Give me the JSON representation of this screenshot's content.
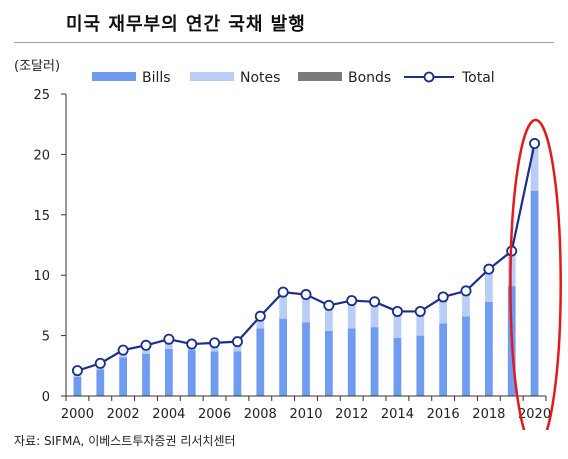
{
  "title": "미국 재무부의 연간 국채 발행",
  "source": "자료: SIFMA, 이베스트투자증권 리서치센터",
  "colors": {
    "bills": "#6f9cf0",
    "notes": "#b9cdf5",
    "bonds": "#7a7a7a",
    "total_line": "#1a2f86",
    "total_marker_fill": "#ffffff",
    "highlight": "#e11b1b",
    "axis": "#333333"
  },
  "chart_data": {
    "type": "bar",
    "stacked": true,
    "unit_label": "(조달러)",
    "years": [
      2000,
      2001,
      2002,
      2003,
      2004,
      2005,
      2006,
      2007,
      2008,
      2009,
      2010,
      2011,
      2012,
      2013,
      2014,
      2015,
      2016,
      2017,
      2018,
      2019,
      2020
    ],
    "x_tick_labels": [
      "2000",
      "2002",
      "2004",
      "2006",
      "2008",
      "2010",
      "2012",
      "2014",
      "2016",
      "2018",
      "2020"
    ],
    "y_ticks": [
      0,
      5,
      10,
      15,
      20,
      25
    ],
    "ylim": [
      0,
      25
    ],
    "legend_position": "top",
    "series": [
      {
        "name": "Bills",
        "kind": "bar",
        "values": [
          1.6,
          2.2,
          3.2,
          3.5,
          3.9,
          3.8,
          3.7,
          3.7,
          5.6,
          6.4,
          6.1,
          5.4,
          5.6,
          5.7,
          4.8,
          5.0,
          6.0,
          6.6,
          7.8,
          9.1,
          17.0
        ]
      },
      {
        "name": "Notes",
        "kind": "bar",
        "values": [
          0.5,
          0.5,
          0.6,
          0.7,
          0.8,
          0.5,
          0.7,
          0.8,
          1.0,
          2.1,
          2.2,
          2.0,
          2.2,
          2.0,
          2.1,
          1.8,
          2.1,
          2.0,
          2.4,
          2.7,
          3.6
        ]
      },
      {
        "name": "Bonds",
        "kind": "bar",
        "values": [
          0.0,
          0.0,
          0.0,
          0.0,
          0.0,
          0.0,
          0.0,
          0.0,
          0.0,
          0.1,
          0.1,
          0.1,
          0.1,
          0.1,
          0.1,
          0.1,
          0.1,
          0.1,
          0.2,
          0.2,
          0.4
        ]
      },
      {
        "name": "Total",
        "kind": "line",
        "values": [
          2.1,
          2.7,
          3.8,
          4.2,
          4.7,
          4.3,
          4.4,
          4.5,
          6.6,
          8.6,
          8.4,
          7.5,
          7.9,
          7.8,
          7.0,
          7.0,
          8.2,
          8.7,
          10.5,
          12.0,
          20.9
        ]
      }
    ]
  }
}
